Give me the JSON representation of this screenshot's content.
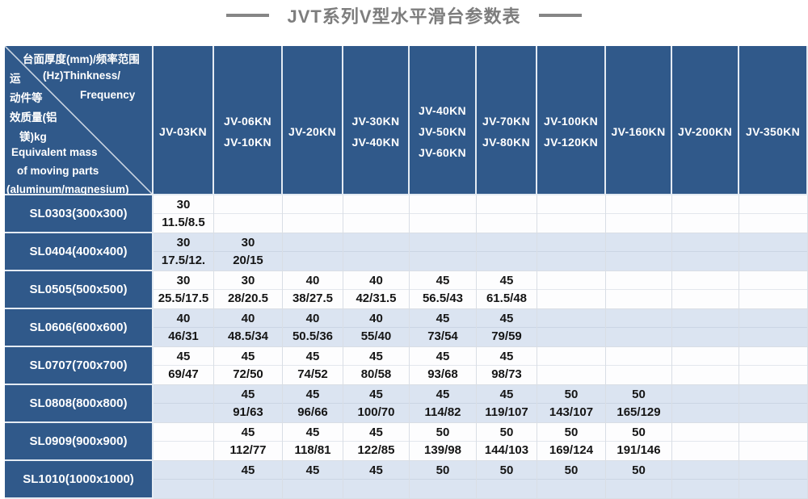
{
  "title": "JVT系列V型水平滑台参数表",
  "colors": {
    "header_blue": "#30598a",
    "row_alt_blue": "#dbe4f1",
    "grid_line": "#d9dee5",
    "title_gray": "#7d7d7d"
  },
  "corner": {
    "l1": "台面厚度(mm)/频率范围",
    "l2a": "运",
    "l2b": "(Hz)Thinkness/",
    "l3a": "动件等",
    "l3b": "Frequency",
    "l4": "效质量(铝",
    "l5": "镁)kg",
    "l6": "Equivalent mass",
    "l7": "of moving parts",
    "l8": "(aluminum/magnesium)"
  },
  "columns": [
    {
      "label_lines": [
        "JV-03KN"
      ]
    },
    {
      "label_lines": [
        "JV-06KN",
        "JV-10KN"
      ]
    },
    {
      "label_lines": [
        "JV-20KN"
      ]
    },
    {
      "label_lines": [
        "JV-30KN",
        "JV-40KN"
      ]
    },
    {
      "label_lines": [
        "JV-40KN",
        "JV-50KN",
        "JV-60KN"
      ]
    },
    {
      "label_lines": [
        "JV-70KN",
        "JV-80KN"
      ]
    },
    {
      "label_lines": [
        "JV-100KN",
        "JV-120KN"
      ]
    },
    {
      "label_lines": [
        "JV-160KN"
      ]
    },
    {
      "label_lines": [
        "JV-200KN"
      ]
    },
    {
      "label_lines": [
        "JV-350KN"
      ]
    }
  ],
  "rows": [
    {
      "model": "SL0303(300x300)",
      "thickness": [
        "30",
        "",
        "",
        "",
        "",
        "",
        "",
        "",
        "",
        ""
      ],
      "frequency": [
        "11.5/8.5",
        "",
        "",
        "",
        "",
        "",
        "",
        "",
        "",
        ""
      ]
    },
    {
      "model": "SL0404(400x400)",
      "thickness": [
        "30",
        "30",
        "",
        "",
        "",
        "",
        "",
        "",
        "",
        ""
      ],
      "frequency": [
        "17.5/12.",
        "20/15",
        "",
        "",
        "",
        "",
        "",
        "",
        "",
        ""
      ]
    },
    {
      "model": "SL0505(500x500)",
      "thickness": [
        "30",
        "30",
        "40",
        "40",
        "45",
        "45",
        "",
        "",
        "",
        ""
      ],
      "frequency": [
        "25.5/17.5",
        "28/20.5",
        "38/27.5",
        "42/31.5",
        "56.5/43",
        "61.5/48",
        "",
        "",
        "",
        ""
      ]
    },
    {
      "model": "SL0606(600x600)",
      "thickness": [
        "40",
        "40",
        "40",
        "40",
        "45",
        "45",
        "",
        "",
        "",
        ""
      ],
      "frequency": [
        "46/31",
        "48.5/34",
        "50.5/36",
        "55/40",
        "73/54",
        "79/59",
        "",
        "",
        "",
        ""
      ]
    },
    {
      "model": "SL0707(700x700)",
      "thickness": [
        "45",
        "45",
        "45",
        "45",
        "45",
        "45",
        "",
        "",
        "",
        ""
      ],
      "frequency": [
        "69/47",
        "72/50",
        "74/52",
        "80/58",
        "93/68",
        "98/73",
        "",
        "",
        "",
        ""
      ]
    },
    {
      "model": "SL0808(800x800)",
      "thickness": [
        "",
        "45",
        "45",
        "45",
        "45",
        "45",
        "50",
        "50",
        "",
        ""
      ],
      "frequency": [
        "",
        "91/63",
        "96/66",
        "100/70",
        "114/82",
        "119/107",
        "143/107",
        "165/129",
        "",
        ""
      ]
    },
    {
      "model": "SL0909(900x900)",
      "thickness": [
        "",
        "45",
        "45",
        "45",
        "50",
        "50",
        "50",
        "50",
        "",
        ""
      ],
      "frequency": [
        "",
        "112/77",
        "118/81",
        "122/85",
        "139/98",
        "144/103",
        "169/124",
        "191/146",
        "",
        ""
      ]
    },
    {
      "model": "SL1010(1000x1000)",
      "thickness": [
        "",
        "45",
        "45",
        "45",
        "50",
        "50",
        "50",
        "50",
        "",
        ""
      ],
      "frequency": [
        "",
        "",
        "",
        "",
        "",
        "",
        "",
        "",
        "",
        ""
      ]
    }
  ]
}
